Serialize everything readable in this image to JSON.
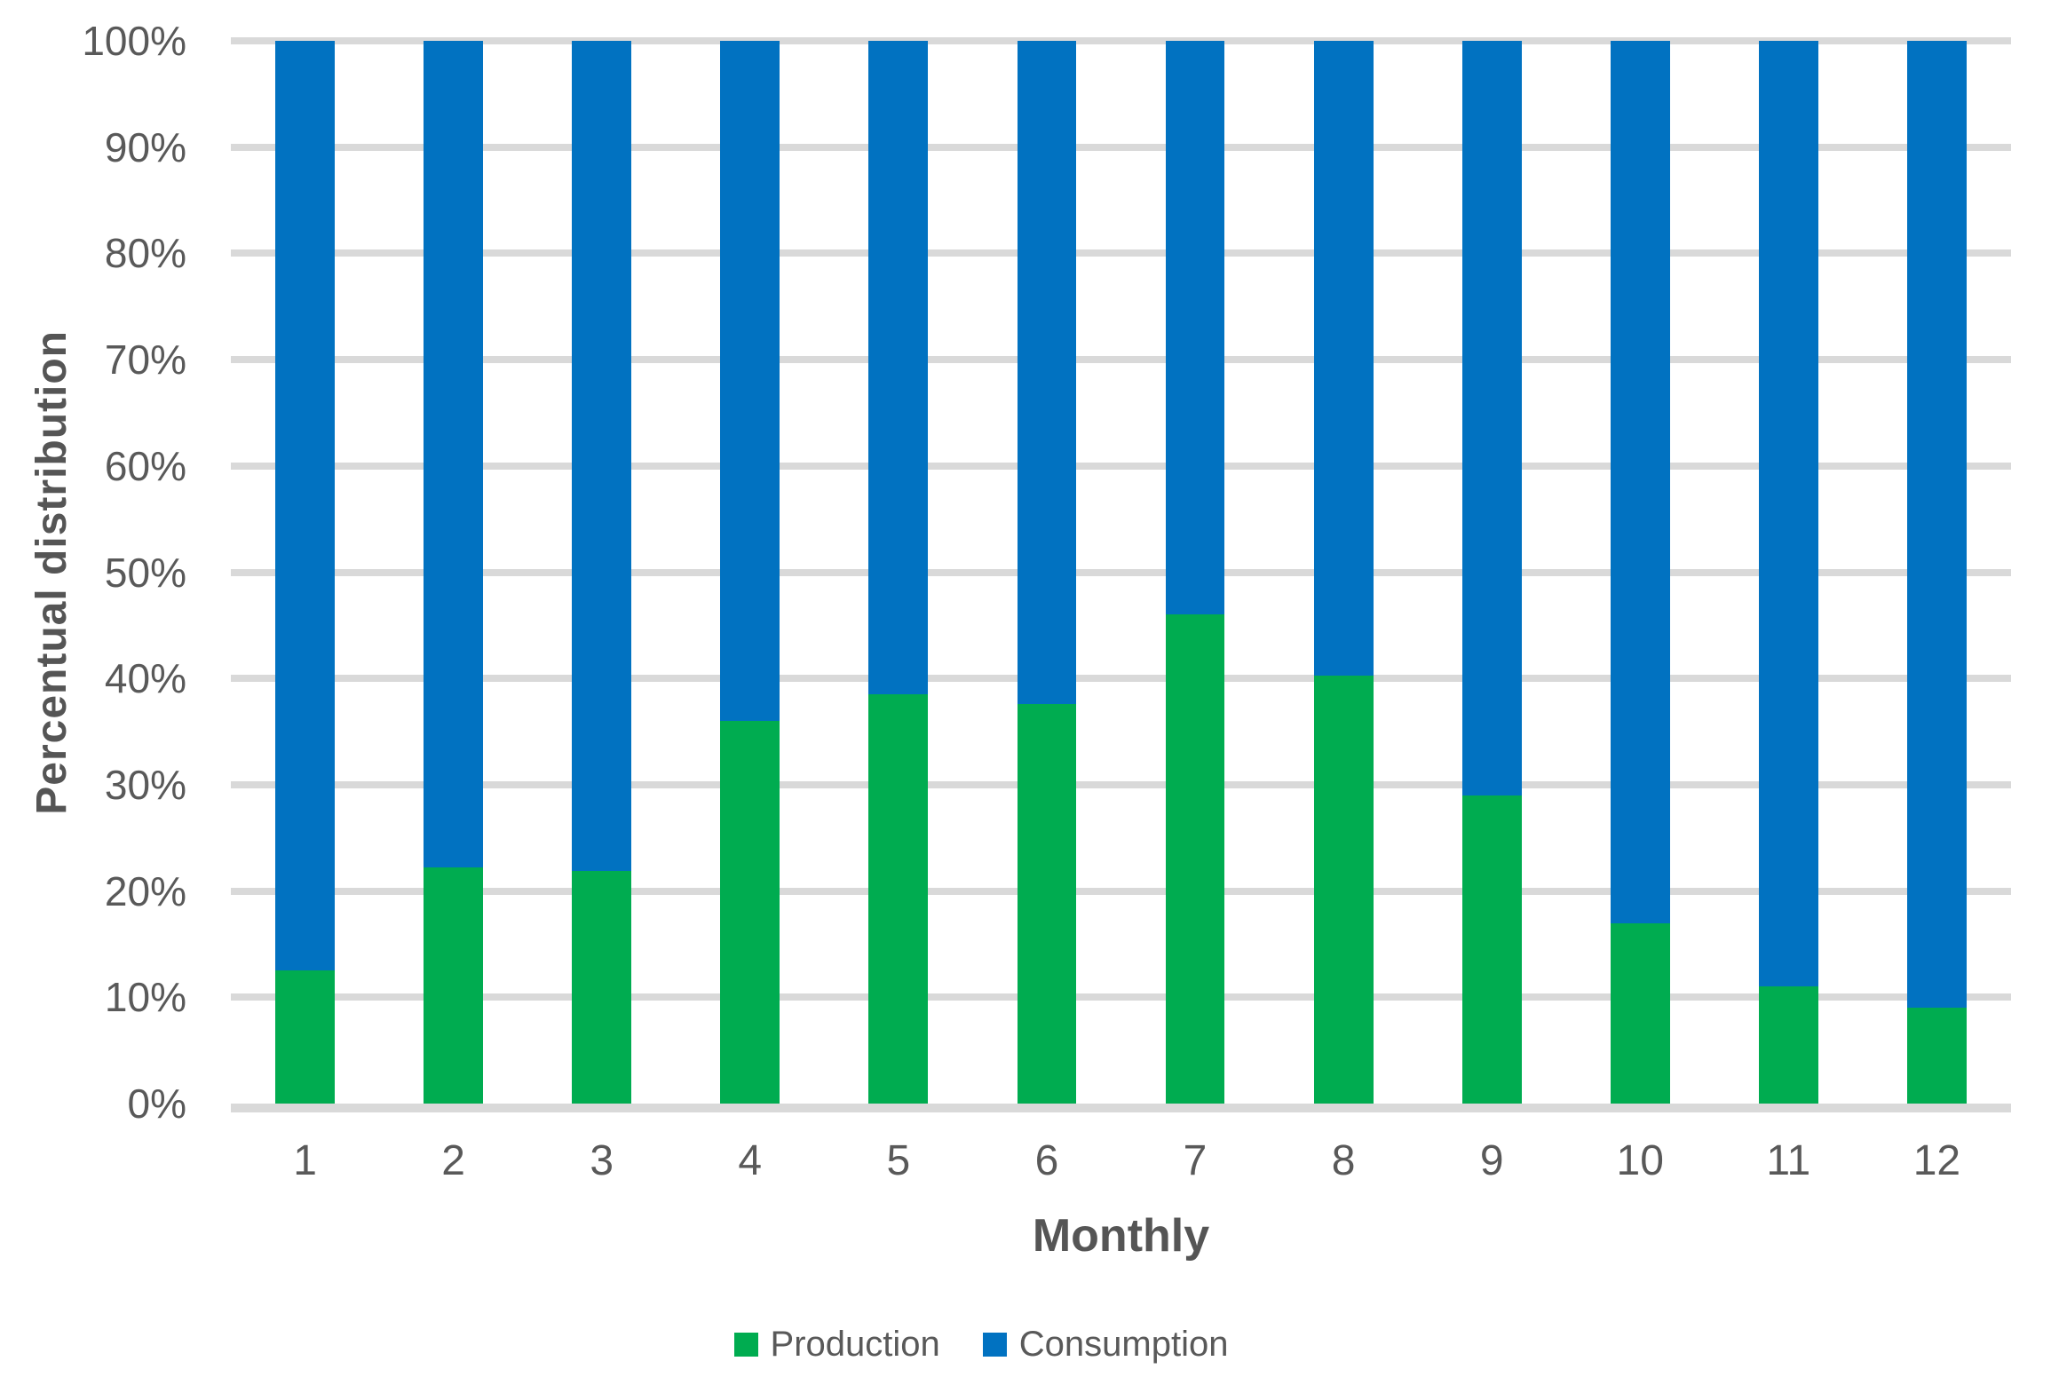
{
  "chart_data": {
    "type": "bar",
    "variant": "stacked-100-percent",
    "title": "",
    "xlabel": "Monthly",
    "ylabel": "Percentual distribution",
    "categories": [
      "1",
      "2",
      "3",
      "4",
      "5",
      "6",
      "7",
      "8",
      "9",
      "10",
      "11",
      "12"
    ],
    "series": [
      {
        "name": "Production",
        "color": "#00AC50",
        "values": [
          12.5,
          22.2,
          21.9,
          36.0,
          38.5,
          37.6,
          46.0,
          40.3,
          29.0,
          17.0,
          11.0,
          9.0
        ]
      },
      {
        "name": "Consumption",
        "color": "#0172C1",
        "values": [
          87.5,
          77.8,
          78.1,
          64.0,
          61.5,
          62.4,
          54.0,
          59.7,
          71.0,
          83.0,
          89.0,
          91.0
        ]
      }
    ],
    "ylim": [
      0,
      100
    ],
    "ytick_step": 10,
    "yticks": [
      "0%",
      "10%",
      "20%",
      "30%",
      "40%",
      "50%",
      "60%",
      "70%",
      "80%",
      "90%",
      "100%"
    ],
    "grid": true,
    "gridline_color": "#D9D9D9",
    "text_color": "#595959",
    "legend_position": "bottom"
  },
  "legend": {
    "items": [
      {
        "label": "Production",
        "color": "#00AC50"
      },
      {
        "label": "Consumption",
        "color": "#0172C1"
      }
    ]
  }
}
